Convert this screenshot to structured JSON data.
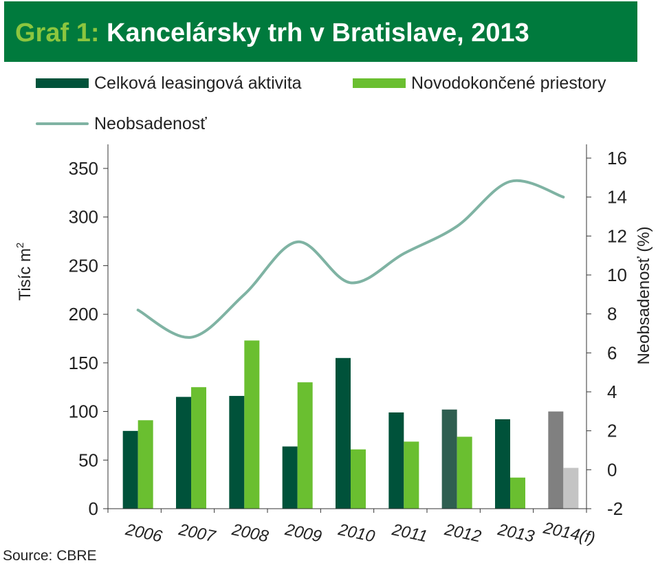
{
  "title": {
    "lead": "Graf 1:",
    "text": "Kancelársky trh v Bratislave, 2013"
  },
  "colors": {
    "banner": "#007a3d",
    "lead": "#8cc63f"
  },
  "source": "Source:  CBRE",
  "chart_data": {
    "type": "bar",
    "categories": [
      "2006",
      "2007",
      "2008",
      "2009",
      "2010",
      "2011",
      "2012",
      "2013",
      "2014(f)"
    ],
    "ylabel_left": "Tisíc m",
    "ylabel_left_sup": "2",
    "ylabel_right": "Neobsadenosť (%)",
    "ylim_left": [
      0,
      350
    ],
    "yticks_left": [
      0,
      50,
      100,
      150,
      200,
      250,
      300,
      350
    ],
    "ylim_right": [
      -2,
      16
    ],
    "yticks_right": [
      -2,
      0,
      2,
      4,
      6,
      8,
      10,
      12,
      14,
      16
    ],
    "grid": false,
    "legend_position": "top",
    "series": [
      {
        "name": "Celková leasingová aktivita",
        "kind": "bar",
        "axis": "left",
        "color": "#00523a",
        "values": [
          80,
          115,
          116,
          64,
          155,
          99,
          102,
          92,
          100
        ],
        "bar_colors": [
          "#00523a",
          "#00523a",
          "#00523a",
          "#00523a",
          "#00523a",
          "#00523a",
          "#2f5e50",
          "#00523a",
          "#808080"
        ]
      },
      {
        "name": "Novodokončené priestory",
        "kind": "bar",
        "axis": "left",
        "color": "#6abf30",
        "values": [
          91,
          125,
          173,
          130,
          61,
          69,
          74,
          32,
          42
        ],
        "bar_colors": [
          "#6abf30",
          "#6abf30",
          "#6abf30",
          "#6abf30",
          "#6abf30",
          "#6abf30",
          "#6abf30",
          "#6abf30",
          "#c4c4c4"
        ]
      },
      {
        "name": "Neobsadenosť",
        "kind": "line",
        "axis": "right",
        "color": "#7fb3a3",
        "values": [
          8.2,
          6.8,
          9.0,
          11.7,
          9.6,
          11.1,
          12.5,
          14.8,
          14.0
        ]
      }
    ]
  }
}
